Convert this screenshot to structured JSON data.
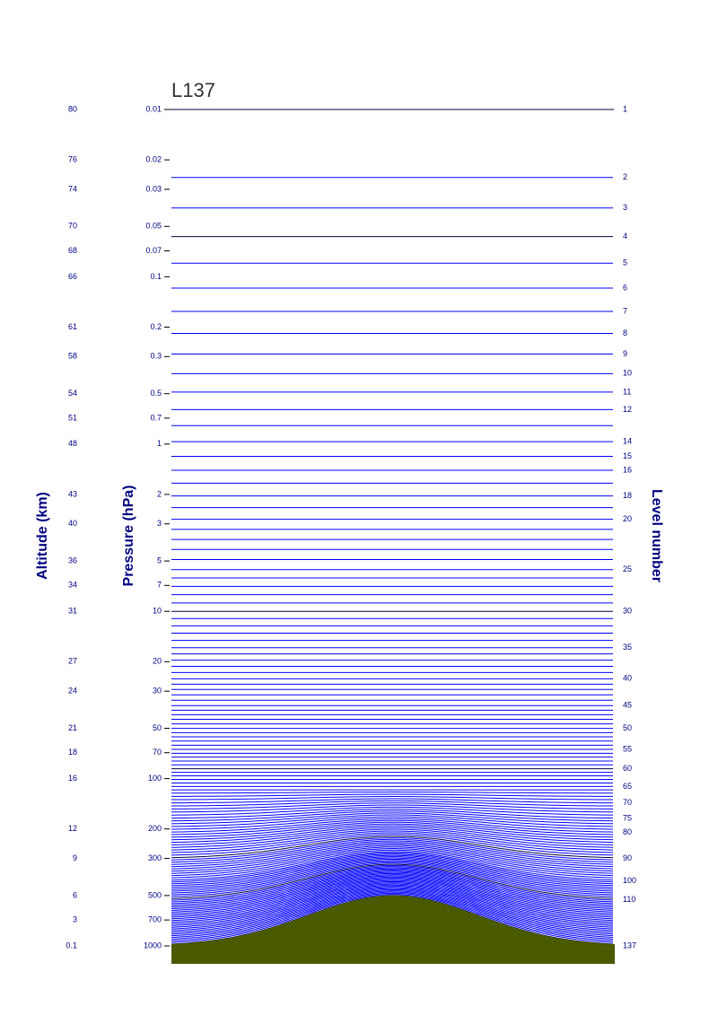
{
  "title": "L137",
  "axis_titles": {
    "altitude": "Altitude (km)",
    "pressure": "Pressure (hPa)",
    "level": "Level number"
  },
  "colors": {
    "model_level": "#0000ff",
    "highlight_level": "#000040",
    "orography": "#4a5a00",
    "label_text": "#000080"
  },
  "chart_data": {
    "type": "diagram",
    "pressure_scale": "log",
    "pressure_range_hPa": [
      0.01,
      1000
    ],
    "pressure_ticks": [
      {
        "p": 0.01,
        "label": "0.01",
        "alt": "80"
      },
      {
        "p": 0.02,
        "label": "0.02",
        "alt": "76"
      },
      {
        "p": 0.03,
        "label": "0.03",
        "alt": "74"
      },
      {
        "p": 0.05,
        "label": "0.05",
        "alt": "70"
      },
      {
        "p": 0.07,
        "label": "0.07",
        "alt": "68"
      },
      {
        "p": 0.1,
        "label": "0.1",
        "alt": "66"
      },
      {
        "p": 0.2,
        "label": "0.2",
        "alt": "61"
      },
      {
        "p": 0.3,
        "label": "0.3",
        "alt": "58"
      },
      {
        "p": 0.5,
        "label": "0.5",
        "alt": "54"
      },
      {
        "p": 0.7,
        "label": "0.7",
        "alt": "51"
      },
      {
        "p": 1,
        "label": "1",
        "alt": "48"
      },
      {
        "p": 2,
        "label": "2",
        "alt": "43"
      },
      {
        "p": 3,
        "label": "3",
        "alt": "40"
      },
      {
        "p": 5,
        "label": "5",
        "alt": "36"
      },
      {
        "p": 7,
        "label": "7",
        "alt": "34"
      },
      {
        "p": 10,
        "label": "10",
        "alt": "31"
      },
      {
        "p": 20,
        "label": "20",
        "alt": "27"
      },
      {
        "p": 30,
        "label": "30",
        "alt": "24"
      },
      {
        "p": 50,
        "label": "50",
        "alt": "21"
      },
      {
        "p": 70,
        "label": "70",
        "alt": "18"
      },
      {
        "p": 100,
        "label": "100",
        "alt": "16"
      },
      {
        "p": 200,
        "label": "200",
        "alt": "12"
      },
      {
        "p": 300,
        "label": "300",
        "alt": "9"
      },
      {
        "p": 500,
        "label": "500",
        "alt": "6"
      },
      {
        "p": 700,
        "label": "700",
        "alt": "3"
      },
      {
        "p": 1000,
        "label": "1000",
        "alt": "0.1"
      }
    ],
    "level_labels": [
      {
        "level": 1,
        "label": "1"
      },
      {
        "level": 2,
        "label": "2"
      },
      {
        "level": 3,
        "label": "3"
      },
      {
        "level": 4,
        "label": "4"
      },
      {
        "level": 5,
        "label": "5"
      },
      {
        "level": 6,
        "label": "6"
      },
      {
        "level": 7,
        "label": "7"
      },
      {
        "level": 8,
        "label": "8"
      },
      {
        "level": 9,
        "label": "9"
      },
      {
        "level": 10,
        "label": "10"
      },
      {
        "level": 11,
        "label": "11"
      },
      {
        "level": 12,
        "label": "12"
      },
      {
        "level": 14,
        "label": "14"
      },
      {
        "level": 15,
        "label": "15"
      },
      {
        "level": 16,
        "label": "16"
      },
      {
        "level": 18,
        "label": "18"
      },
      {
        "level": 20,
        "label": "20"
      },
      {
        "level": 25,
        "label": "25"
      },
      {
        "level": 30,
        "label": "30"
      },
      {
        "level": 35,
        "label": "35"
      },
      {
        "level": 40,
        "label": "40"
      },
      {
        "level": 45,
        "label": "45"
      },
      {
        "level": 50,
        "label": "50"
      },
      {
        "level": 55,
        "label": "55"
      },
      {
        "level": 60,
        "label": "60"
      },
      {
        "level": 65,
        "label": "65"
      },
      {
        "level": 70,
        "label": "70"
      },
      {
        "level": 75,
        "label": "75"
      },
      {
        "level": 80,
        "label": "80"
      },
      {
        "level": 90,
        "label": "90"
      },
      {
        "level": 100,
        "label": "100"
      },
      {
        "level": 110,
        "label": "110"
      },
      {
        "level": 137,
        "label": "137"
      }
    ],
    "level_pressures_hPa": {
      "1": 0.01,
      "2": 0.0255,
      "3": 0.0388,
      "4": 0.0575,
      "5": 0.0829,
      "6": 0.1168,
      "7": 0.1611,
      "8": 0.218,
      "9": 0.2899,
      "10": 0.3793,
      "11": 0.4892,
      "12": 0.6224,
      "14": 0.9675,
      "15": 1.1842,
      "16": 1.4343,
      "18": 2.0442,
      "20": 2.8168,
      "25": 5.6345,
      "30": 10.0,
      "35": 16.5,
      "40": 25.3,
      "45": 36.6,
      "50": 50.1,
      "55": 66.9,
      "60": 87.3,
      "65": 111.5,
      "70": 140.0,
      "75": 173.0,
      "80": 210.0,
      "90": 300.0,
      "100": 410.0,
      "110": 530.0,
      "137": 1000.0
    },
    "highlight_levels": [
      1,
      4,
      30,
      60,
      90,
      110,
      137
    ],
    "total_levels": 137,
    "surface_pressure_hPa": 1000,
    "orography_peak_pressure_hPa": 500
  }
}
